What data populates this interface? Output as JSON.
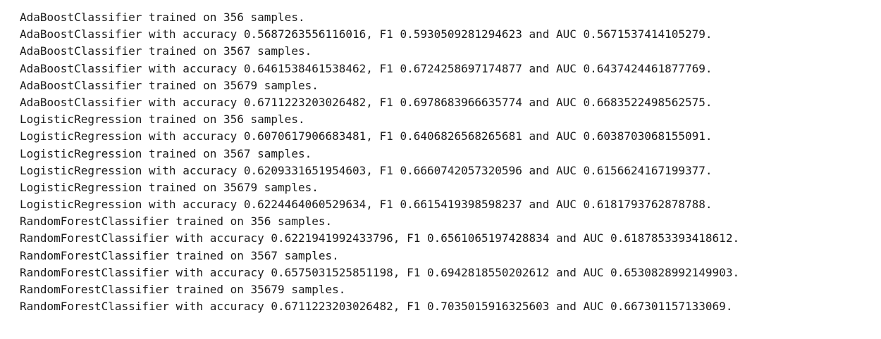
{
  "output": {
    "lines": [
      "AdaBoostClassifier trained on 356 samples.",
      "AdaBoostClassifier with accuracy 0.5687263556116016, F1 0.5930509281294623 and AUC 0.5671537414105279.",
      "AdaBoostClassifier trained on 3567 samples.",
      "AdaBoostClassifier with accuracy 0.6461538461538462, F1 0.6724258697174877 and AUC 0.6437424461877769.",
      "AdaBoostClassifier trained on 35679 samples.",
      "AdaBoostClassifier with accuracy 0.6711223203026482, F1 0.6978683966635774 and AUC 0.6683522498562575.",
      "LogisticRegression trained on 356 samples.",
      "LogisticRegression with accuracy 0.6070617906683481, F1 0.6406826568265681 and AUC 0.6038703068155091.",
      "LogisticRegression trained on 3567 samples.",
      "LogisticRegression with accuracy 0.6209331651954603, F1 0.6660742057320596 and AUC 0.6156624167199377.",
      "LogisticRegression trained on 35679 samples.",
      "LogisticRegression with accuracy 0.6224464060529634, F1 0.6615419398598237 and AUC 0.6181793762878788.",
      "RandomForestClassifier trained on 356 samples.",
      "RandomForestClassifier with accuracy 0.6221941992433796, F1 0.6561065197428834 and AUC 0.6187853393418612.",
      "RandomForestClassifier trained on 3567 samples.",
      "RandomForestClassifier with accuracy 0.6575031525851198, F1 0.6942818550202612 and AUC 0.6530828992149903.",
      "RandomForestClassifier trained on 35679 samples.",
      "RandomForestClassifier with accuracy 0.6711223203026482, F1 0.7035015916325603 and AUC 0.667301157133069."
    ]
  }
}
